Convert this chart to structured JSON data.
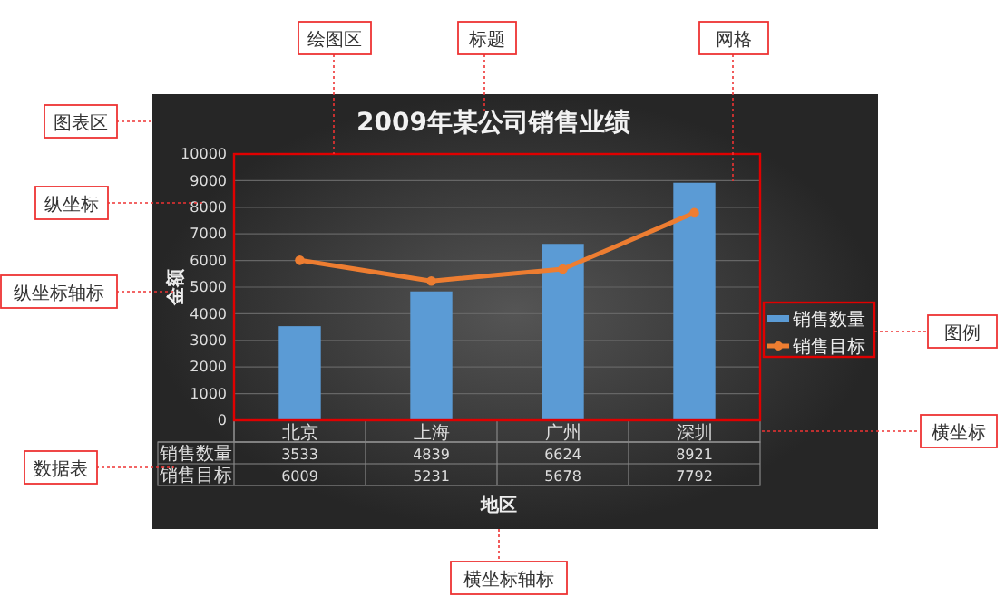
{
  "chart_data": {
    "type": "bar",
    "title": "2009年某公司销售业绩",
    "xlabel": "地区",
    "ylabel": "金额",
    "categories": [
      "北京",
      "上海",
      "广州",
      "深圳"
    ],
    "series": [
      {
        "name": "销售数量",
        "color": "#5b9bd5",
        "values": [
          3533,
          4839,
          6624,
          8921
        ]
      },
      {
        "name": "销售目标",
        "type": "line",
        "color": "#ed7d31",
        "values": [
          6009,
          5231,
          5678,
          7792
        ]
      }
    ],
    "ylim": [
      0,
      10000
    ],
    "yticks": [
      0,
      1000,
      2000,
      3000,
      4000,
      5000,
      6000,
      7000,
      8000,
      9000,
      10000
    ],
    "grid": "y",
    "legend": "right",
    "marker": "circle",
    "data_labels": true,
    "annotations": [
      "绘图区",
      "标题",
      "网格",
      "图表区",
      "纵坐标",
      "纵坐标轴标",
      "图例",
      "数据表",
      "横坐标",
      "横坐标轴标"
    ]
  }
}
